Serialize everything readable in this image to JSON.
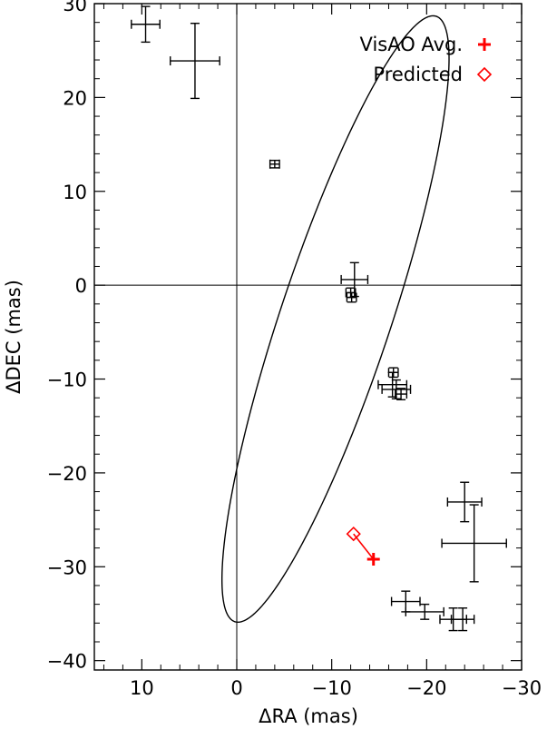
{
  "chart_data": {
    "type": "scatter",
    "title": "",
    "xlabel": "ΔRA (mas)",
    "ylabel": "ΔDEC (mas)",
    "xlim": [
      15,
      -30
    ],
    "ylim": [
      -41,
      30
    ],
    "x_reversed": true,
    "grid": false,
    "zero_lines": true,
    "x_ticks": [
      10,
      0,
      -10,
      -20,
      -30
    ],
    "x_tick_labels": [
      "10",
      "0",
      "−10",
      "−20",
      "−30"
    ],
    "y_ticks": [
      -40,
      -30,
      -20,
      -10,
      0,
      10,
      20,
      30
    ],
    "y_tick_labels": [
      "−40",
      "−30",
      "−20",
      "−10",
      "0",
      "10",
      "20",
      "30"
    ],
    "legend_position": "top-right",
    "orbit": {
      "center": [
        -10.4,
        -3.6
      ],
      "a": 33.95,
      "b": 5.82,
      "angle_deg": 108.2,
      "color": "#000000"
    },
    "series": [
      {
        "name": "",
        "marker": "errorbar",
        "color": "#000000",
        "points": [
          {
            "x": 9.6,
            "y": 27.8,
            "xerr": 1.5,
            "yerr": 1.9
          },
          {
            "x": 4.4,
            "y": 23.9,
            "xerr": 2.6,
            "yerr": 4.0
          },
          {
            "x": -4.0,
            "y": 12.9,
            "xerr": 0.5,
            "yerr": 0.4
          },
          {
            "x": -12.4,
            "y": 0.6,
            "xerr": 1.4,
            "yerr": 1.8
          },
          {
            "x": -12.0,
            "y": -0.8,
            "xerr": 0.5,
            "yerr": 0.5
          },
          {
            "x": -12.1,
            "y": -1.3,
            "xerr": 0.5,
            "yerr": 0.5
          },
          {
            "x": -16.5,
            "y": -9.3,
            "xerr": 0.5,
            "yerr": 0.5
          },
          {
            "x": -16.4,
            "y": -10.6,
            "xerr": 1.5,
            "yerr": 1.3
          },
          {
            "x": -16.8,
            "y": -11.1,
            "xerr": 1.5,
            "yerr": 1.0
          },
          {
            "x": -17.3,
            "y": -11.6,
            "xerr": 0.6,
            "yerr": 0.6
          },
          {
            "x": -24.0,
            "y": -23.1,
            "xerr": 1.8,
            "yerr": 2.1
          },
          {
            "x": -25.0,
            "y": -27.5,
            "xerr": 3.4,
            "yerr": 4.1
          },
          {
            "x": -17.8,
            "y": -33.7,
            "xerr": 1.5,
            "yerr": 1.1
          },
          {
            "x": -19.8,
            "y": -34.8,
            "xerr": 2.0,
            "yerr": 0.8
          },
          {
            "x": -22.8,
            "y": -35.6,
            "xerr": 1.4,
            "yerr": 1.2
          },
          {
            "x": -23.8,
            "y": -35.6,
            "xerr": 1.2,
            "yerr": 1.2
          }
        ]
      },
      {
        "name": "VisAO Avg.",
        "marker": "plus",
        "color": "#ff0000",
        "points": [
          {
            "x": -14.4,
            "y": -29.2
          }
        ]
      },
      {
        "name": "Predicted",
        "marker": "diamond",
        "color": "#ff0000",
        "points": [
          {
            "x": -12.3,
            "y": -26.5
          }
        ]
      }
    ],
    "predicted_to_observed_line": {
      "from": [
        -12.3,
        -26.5
      ],
      "to": [
        -14.4,
        -29.2
      ],
      "color": "#ff0000"
    }
  }
}
